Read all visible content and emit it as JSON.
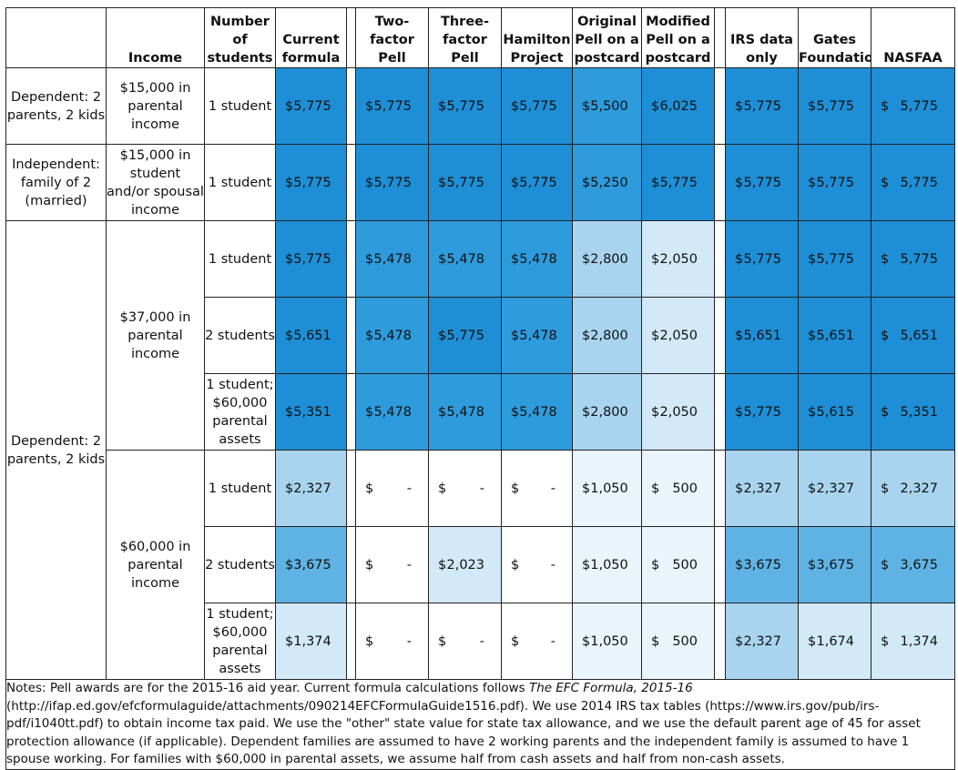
{
  "headers": {
    "col1": "",
    "income": "Income",
    "students": "Number of students",
    "current": "Current formula",
    "two_factor": "Two-factor Pell",
    "three_factor": "Three-factor Pell",
    "hamilton": "Hamilton Project",
    "original_postcard": "Original Pell on a postcard",
    "modified_postcard": "Modified Pell on a postcard",
    "irs": "IRS data only",
    "gates": "Gates Foundation",
    "nasfaa": "NASFAA"
  },
  "groups": {
    "g1_family": "Dependent: 2 parents, 2 kids",
    "g1_income": "$15,000 in parental income",
    "g2_family": "Independent: family of 2 (married)",
    "g2_income": "$15,000 in student and/or spousal income",
    "g3_family": "Dependent: 2 parents, 2 kids",
    "g3_income_a": "$37,000 in parental income",
    "g3_income_b": "$60,000 in parental income"
  },
  "currency_symbol": "$",
  "rows": [
    {
      "students": "1 student",
      "values": [
        "5,775",
        "5,775",
        "5,775",
        "5,775",
        "5,500",
        "6,025",
        "5,775",
        "5,775",
        "5,775"
      ],
      "shades": [
        "c5",
        "c5",
        "c5",
        "c5",
        "c4",
        "c5",
        "c5",
        "c5",
        "c5"
      ]
    },
    {
      "students": "1 student",
      "values": [
        "5,775",
        "5,775",
        "5,775",
        "5,775",
        "5,250",
        "5,775",
        "5,775",
        "5,775",
        "5,775"
      ],
      "shades": [
        "c5",
        "c5",
        "c5",
        "c5",
        "c4",
        "c5",
        "c5",
        "c5",
        "c5"
      ]
    },
    {
      "students": "1 student",
      "values": [
        "5,775",
        "5,478",
        "5,478",
        "5,478",
        "2,800",
        "2,050",
        "5,775",
        "5,775",
        "5,775"
      ],
      "shades": [
        "c5",
        "c4",
        "c4",
        "c4",
        "c2",
        "c1",
        "c5",
        "c5",
        "c5"
      ]
    },
    {
      "students": "2 students",
      "values": [
        "5,651",
        "5,478",
        "5,775",
        "5,478",
        "2,800",
        "2,050",
        "5,651",
        "5,651",
        "5,651"
      ],
      "shades": [
        "c5",
        "c4",
        "c5",
        "c4",
        "c2",
        "c1",
        "c5",
        "c5",
        "c5"
      ]
    },
    {
      "students": "1 student; $60,000 parental assets",
      "values": [
        "5,351",
        "5,478",
        "5,478",
        "5,478",
        "2,800",
        "2,050",
        "5,775",
        "5,615",
        "5,351"
      ],
      "shades": [
        "c5",
        "c4",
        "c4",
        "c4",
        "c2",
        "c1",
        "c5",
        "c5",
        "c5"
      ]
    },
    {
      "students": "1 student",
      "values": [
        "2,327",
        "-",
        "-",
        "-",
        "1,050",
        "500",
        "2,327",
        "2,327",
        "2,327"
      ],
      "shades": [
        "c2",
        "cw",
        "cw",
        "cw",
        "c0",
        "c0",
        "c2",
        "c2",
        "c2"
      ]
    },
    {
      "students": "2 students",
      "values": [
        "3,675",
        "-",
        "2,023",
        "-",
        "1,050",
        "500",
        "3,675",
        "3,675",
        "3,675"
      ],
      "shades": [
        "c3",
        "cw",
        "c1",
        "cw",
        "c0",
        "c0",
        "c3",
        "c3",
        "c3"
      ]
    },
    {
      "students": "1 student; $60,000 parental assets",
      "values": [
        "1,374",
        "-",
        "-",
        "-",
        "1,050",
        "500",
        "2,327",
        "1,674",
        "1,374"
      ],
      "shades": [
        "c1",
        "cw",
        "cw",
        "cw",
        "c0",
        "c0",
        "c2",
        "c1",
        "c1"
      ]
    }
  ],
  "notes": {
    "part1": "Notes: Pell awards are for the 2015-16 aid year. Current formula calculations follows ",
    "title": "The EFC Formula, 2015-16",
    "part2": " (http://ifap.ed.gov/efcformulaguide/attachments/090214EFCFormulaGuide1516.pdf). We use 2014 IRS tax tables (https://www.irs.gov/pub/irs-pdf/i1040tt.pdf) to obtain income tax paid. We use the  \"other\" state value for state tax allowance, and we use the default parent age of 45 for asset protection allowance (if applicable). Dependent families are assumed to have 2 working parents and the independent family is assumed to have 1 spouse working. For families with $60,000 in parental assets, we assume half from cash assets and half from non-cash assets."
  }
}
